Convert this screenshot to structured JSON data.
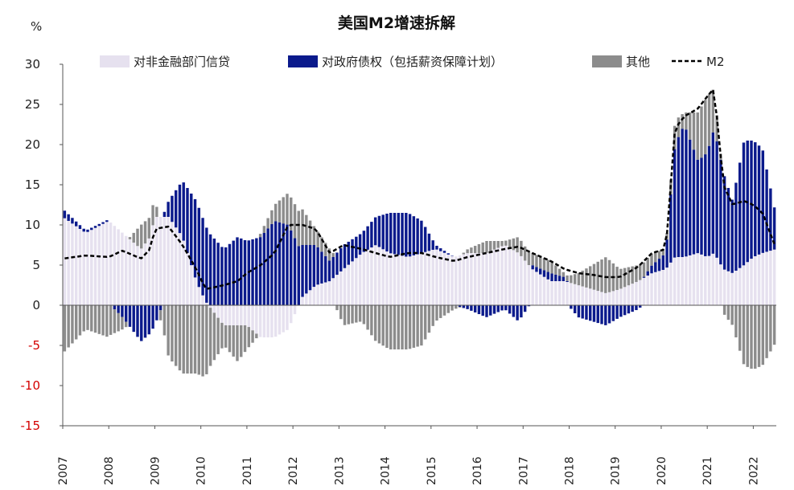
{
  "chart_data": {
    "type": "bar",
    "title": "美国M2增速拆解",
    "ylabel": "%",
    "ylim": [
      -15,
      30
    ],
    "yticks": [
      30,
      25,
      20,
      15,
      10,
      5,
      0,
      -5,
      -10,
      -15
    ],
    "ytick_labels": [
      "30",
      "25",
      "20",
      "15",
      "10",
      "5",
      "0",
      "-5",
      "-10",
      "-15"
    ],
    "x_tick_labels": [
      "2007",
      "2008",
      "2009",
      "2010",
      "2011",
      "2012",
      "2013",
      "2014",
      "2015",
      "2016",
      "2017",
      "2018",
      "2019",
      "2020",
      "2021",
      "2022"
    ],
    "x_start_year": 2007,
    "x_end_year": 2022.5,
    "frequency": "monthly",
    "legend": {
      "loans": "对非金融部门信贷",
      "gov": "对政府债权（包括薪资保障计划）",
      "other": "其他",
      "m2": "M2"
    },
    "colors": {
      "loans": "#e6e1ef",
      "gov": "#0b1a8c",
      "other": "#8c8c8c",
      "m2": "#000000"
    },
    "keyframes": [
      [
        2007.0,
        11.0,
        1.0,
        -6.0,
        5.8
      ],
      [
        2007.5,
        9.0,
        0.3,
        -3.0,
        6.2
      ],
      [
        2008.0,
        10.5,
        0.2,
        -4.0,
        6.0
      ],
      [
        2008.3,
        9.0,
        -1.5,
        -1.5,
        6.8
      ],
      [
        2008.7,
        7.0,
        -4.5,
        3.0,
        5.8
      ],
      [
        2008.9,
        8.5,
        -3.5,
        2.5,
        7.0
      ],
      [
        2009.0,
        11.0,
        -2.5,
        2.5,
        9.5
      ],
      [
        2009.3,
        11.0,
        2.0,
        -6.5,
        9.8
      ],
      [
        2009.6,
        8.5,
        7.0,
        -8.5,
        7.5
      ],
      [
        2009.9,
        3.0,
        10.0,
        -8.5,
        4.5
      ],
      [
        2010.1,
        0.5,
        9.5,
        -9.0,
        2.0
      ],
      [
        2010.5,
        -2.5,
        7.0,
        -2.5,
        2.5
      ],
      [
        2010.8,
        -2.5,
        8.5,
        -4.5,
        3.0
      ],
      [
        2011.0,
        -2.5,
        8.0,
        -3.0,
        4.0
      ],
      [
        2011.3,
        -4.0,
        8.5,
        0.5,
        5.0
      ],
      [
        2011.6,
        -4.0,
        10.5,
        2.0,
        6.5
      ],
      [
        2011.9,
        -3.0,
        10.0,
        4.0,
        10.0
      ],
      [
        2012.2,
        1.0,
        6.5,
        4.5,
        10.0
      ],
      [
        2012.5,
        2.5,
        5.0,
        2.0,
        9.5
      ],
      [
        2012.8,
        3.0,
        2.5,
        1.5,
        6.5
      ],
      [
        2013.1,
        4.5,
        3.0,
        -2.5,
        7.5
      ],
      [
        2013.5,
        6.5,
        2.5,
        -2.0,
        7.0
      ],
      [
        2013.8,
        7.5,
        3.5,
        -4.5,
        6.5
      ],
      [
        2014.1,
        6.5,
        5.0,
        -5.5,
        6.0
      ],
      [
        2014.5,
        6.0,
        5.5,
        -5.5,
        6.5
      ],
      [
        2014.8,
        6.5,
        4.0,
        -5.0,
        6.5
      ],
      [
        2015.1,
        7.0,
        0.5,
        -2.0,
        6.0
      ],
      [
        2015.5,
        6.0,
        0.0,
        -0.5,
        5.5
      ],
      [
        2015.8,
        6.5,
        -0.5,
        0.5,
        6.0
      ],
      [
        2016.2,
        6.5,
        -1.5,
        1.5,
        6.5
      ],
      [
        2016.6,
        7.5,
        -0.5,
        0.5,
        7.0
      ],
      [
        2016.9,
        6.5,
        -2.0,
        2.0,
        7.3
      ],
      [
        2017.2,
        4.5,
        0.5,
        1.5,
        6.5
      ],
      [
        2017.6,
        3.0,
        1.0,
        1.5,
        5.5
      ],
      [
        2017.9,
        3.0,
        0.5,
        0.5,
        4.5
      ],
      [
        2018.2,
        2.5,
        -1.5,
        1.5,
        4.0
      ],
      [
        2018.5,
        2.0,
        -2.0,
        3.0,
        3.8
      ],
      [
        2018.8,
        1.5,
        -2.5,
        4.5,
        3.5
      ],
      [
        2019.1,
        2.0,
        -1.5,
        2.5,
        3.5
      ],
      [
        2019.5,
        3.0,
        -0.5,
        2.0,
        4.8
      ],
      [
        2019.8,
        4.0,
        1.0,
        1.5,
        6.5
      ],
      [
        2020.1,
        4.5,
        2.0,
        0.5,
        7.0
      ],
      [
        2020.3,
        6.0,
        14.0,
        3.0,
        22.0
      ],
      [
        2020.5,
        6.0,
        16.5,
        1.5,
        23.5
      ],
      [
        2020.8,
        6.5,
        11.5,
        6.0,
        24.5
      ],
      [
        2021.0,
        6.0,
        13.0,
        7.0,
        26.0
      ],
      [
        2021.15,
        6.5,
        15.5,
        5.0,
        27.0
      ],
      [
        2021.35,
        4.5,
        12.0,
        -1.0,
        15.0
      ],
      [
        2021.55,
        4.0,
        9.0,
        -2.5,
        12.5
      ],
      [
        2021.8,
        5.0,
        15.5,
        -7.5,
        13.0
      ],
      [
        2022.0,
        6.0,
        14.5,
        -8.0,
        12.5
      ],
      [
        2022.2,
        6.5,
        13.0,
        -7.5,
        11.5
      ],
      [
        2022.5,
        7.0,
        4.0,
        -4.5,
        7.0
      ]
    ]
  }
}
